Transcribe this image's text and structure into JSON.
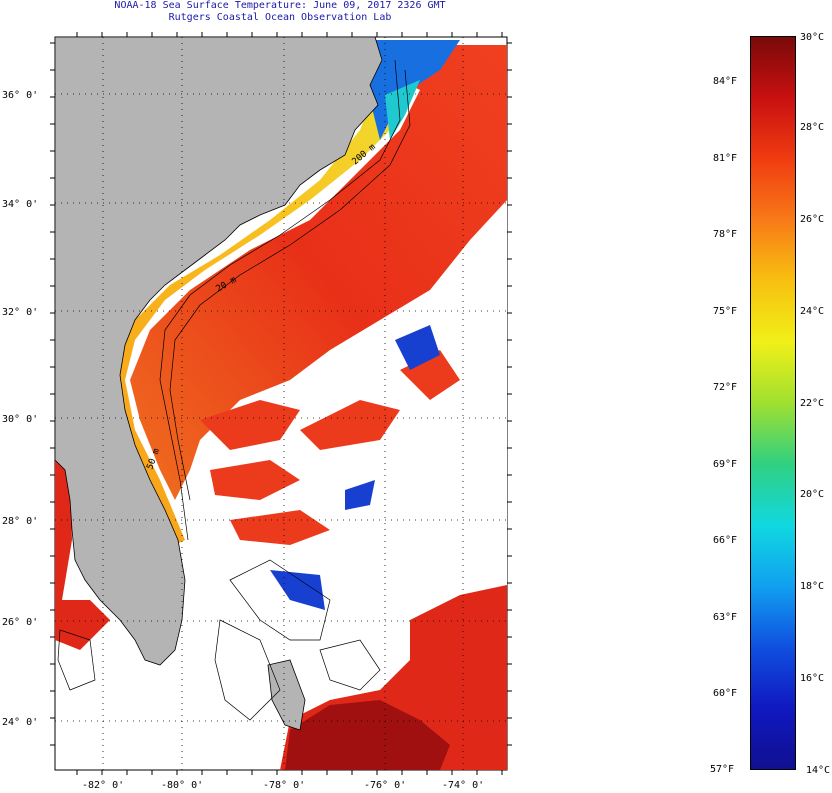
{
  "title": {
    "line1": "NOAA-18 Sea Surface Temperature:  June 09, 2017 2326 GMT",
    "line2": "Rutgers Coastal Ocean Observation Lab"
  },
  "map": {
    "lat_labels": [
      "36° 0'",
      "34° 0'",
      "32° 0'",
      "30° 0'",
      "28° 0'",
      "26° 0'",
      "24° 0'"
    ],
    "lon_labels": [
      "-82° 0'",
      "-80° 0'",
      "-78° 0'",
      "-76° 0'",
      "-74° 0'"
    ],
    "contour_labels": [
      "50 m",
      "20 m",
      "200 m"
    ],
    "colors": {
      "land": "#b4b4b4",
      "cloud": "#ffffff",
      "warm": "#e8281c",
      "hot": "#a01010"
    }
  },
  "colorbar": {
    "fahrenheit": [
      "84°F",
      "81°F",
      "78°F",
      "75°F",
      "72°F",
      "69°F",
      "66°F",
      "63°F",
      "60°F",
      "57°F"
    ],
    "celsius": [
      "30°C",
      "28°C",
      "26°C",
      "24°C",
      "22°C",
      "20°C",
      "18°C",
      "16°C",
      "14°C"
    ],
    "gradient": [
      "#7a0a0a",
      "#c81010",
      "#f03c10",
      "#f87a18",
      "#f8c010",
      "#f0f018",
      "#a0e030",
      "#30d080",
      "#10d8e0",
      "#10a0f0",
      "#1050e0",
      "#1018c0",
      "#101090"
    ]
  }
}
